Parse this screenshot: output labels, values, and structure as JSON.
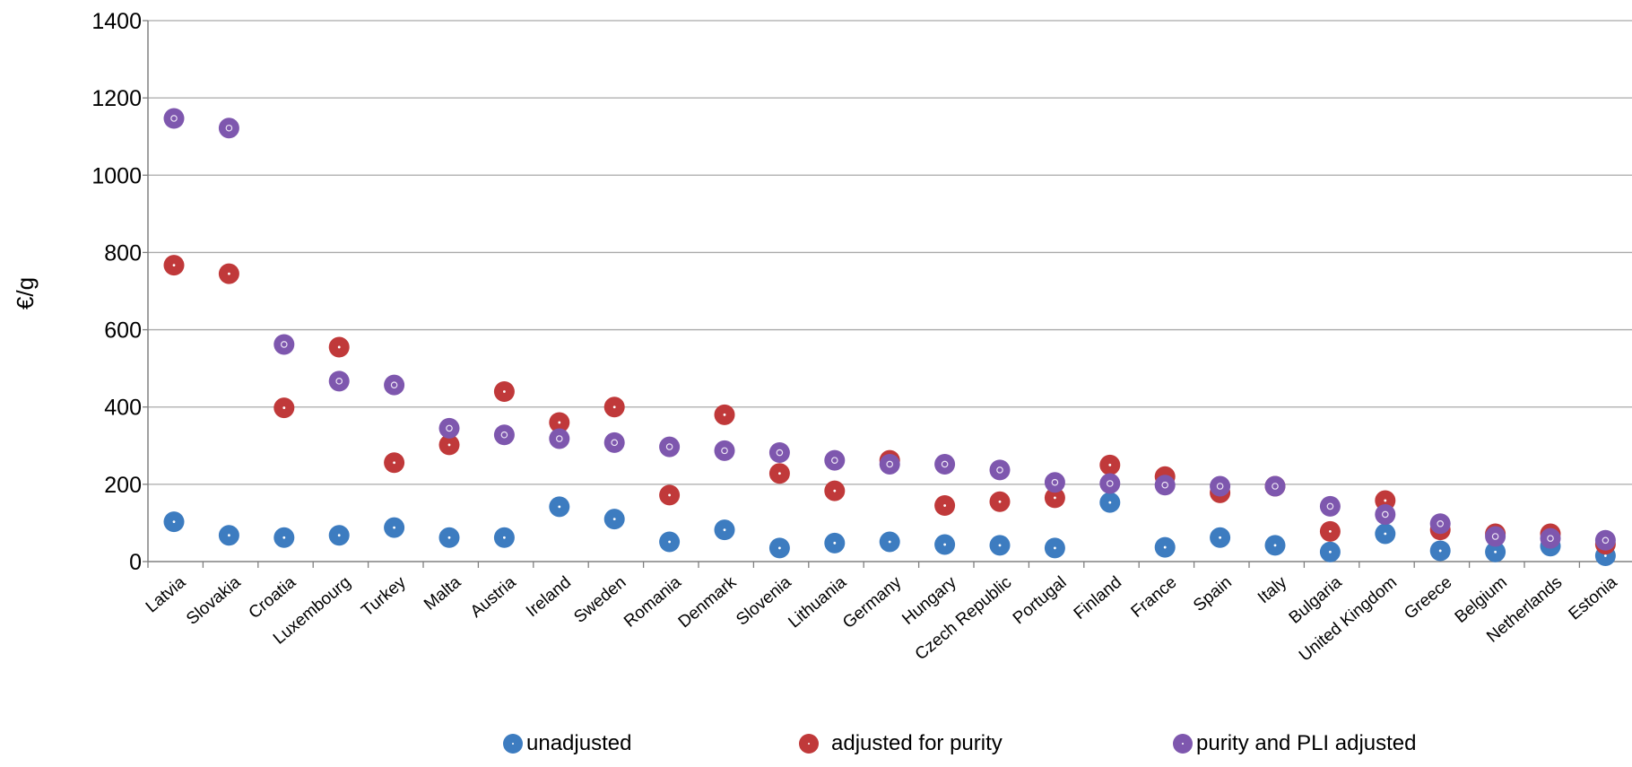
{
  "chart_data": {
    "type": "scatter",
    "ylabel": "€/g",
    "xlabel": "",
    "ylim": [
      0,
      1400
    ],
    "yticks": [
      "0",
      "200",
      "400",
      "600",
      "800",
      "1000",
      "1200",
      "1400"
    ],
    "grid": true,
    "legend_position": "bottom",
    "categories": [
      "Latvia",
      "Slovakia",
      "Croatia",
      "Luxembourg",
      "Turkey",
      "Malta",
      "Austria",
      "Ireland",
      "Sweden",
      "Romania",
      "Denmark",
      "Slovenia",
      "Lithuania",
      "Germany",
      "Hungary",
      "Czech Republic",
      "Portugal",
      "Finland",
      "France",
      "Spain",
      "Italy",
      "Bulgaria",
      "United Kingdom",
      "Greece",
      "Belgium",
      "Netherlands",
      "Estonia"
    ],
    "series": [
      {
        "name": "unadjusted",
        "color": "#3d7cc0",
        "values": [
          103,
          68,
          62,
          68,
          88,
          62,
          62,
          142,
          110,
          51,
          82,
          35,
          48,
          51,
          44,
          42,
          35,
          153,
          37,
          62,
          42,
          25,
          72,
          28,
          25,
          40,
          15
        ]
      },
      {
        "name": "adjusted for purity",
        "color": "#c0393a",
        "values": [
          767,
          745,
          398,
          555,
          256,
          302,
          440,
          360,
          400,
          172,
          380,
          228,
          183,
          262,
          145,
          155,
          165,
          250,
          220,
          178,
          195,
          78,
          158,
          82,
          72,
          72,
          45
        ]
      },
      {
        "name": "purity and PLI adjusted",
        "color": "#7e57ae",
        "values": [
          1147,
          1122,
          562,
          467,
          457,
          345,
          328,
          318,
          308,
          297,
          287,
          282,
          262,
          252,
          252,
          237,
          205,
          202,
          198,
          195,
          195,
          143,
          122,
          98,
          65,
          60,
          55
        ]
      }
    ]
  }
}
